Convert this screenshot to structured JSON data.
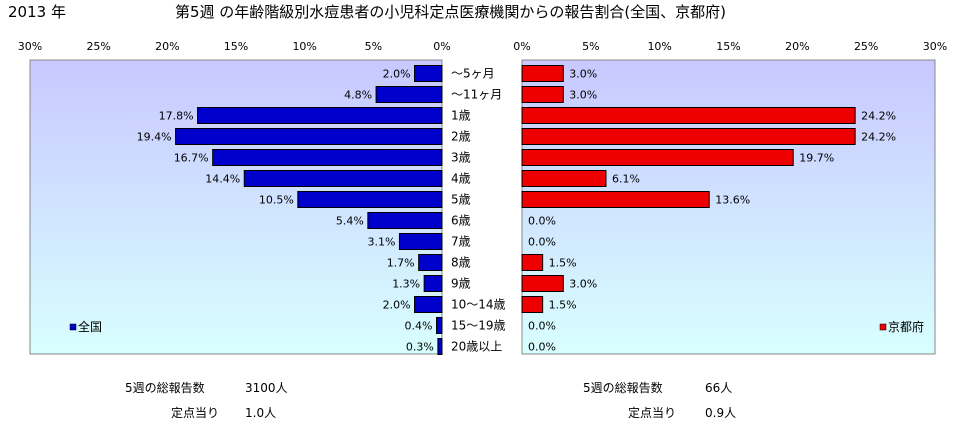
{
  "header": {
    "year": "2013 年",
    "title": "第5週 の年齢階級別水痘患者の小児科定点医療機関からの報告割合(全国、京都府)"
  },
  "colors": {
    "national": "#0000cc",
    "kyoto": "#ee0000",
    "plot_bg_top": "#c8c8ff",
    "plot_bg_bottom": "#d8ffff"
  },
  "chart_data": {
    "type": "bar",
    "categories": [
      "～5ヶ月",
      "～11ヶ月",
      "1歳",
      "2歳",
      "3歳",
      "4歳",
      "5歳",
      "6歳",
      "7歳",
      "8歳",
      "9歳",
      "10～14歳",
      "15～19歳",
      "20歳以上"
    ],
    "xlim": [
      0,
      30
    ],
    "x_tick_labels": [
      "0%",
      "5%",
      "10%",
      "15%",
      "20%",
      "25%",
      "30%"
    ],
    "series": [
      {
        "name": "全国",
        "values": [
          2.0,
          4.8,
          17.8,
          19.4,
          16.7,
          14.4,
          10.5,
          5.4,
          3.1,
          1.7,
          1.3,
          2.0,
          0.4,
          0.3
        ],
        "labels": [
          "2.0%",
          "4.8%",
          "17.8%",
          "19.4%",
          "16.7%",
          "14.4%",
          "10.5%",
          "5.4%",
          "3.1%",
          "1.7%",
          "1.3%",
          "2.0%",
          "0.4%",
          "0.3%"
        ]
      },
      {
        "name": "京都府",
        "values": [
          3.0,
          3.0,
          24.2,
          24.2,
          19.7,
          6.1,
          13.6,
          0.0,
          0.0,
          1.5,
          3.0,
          1.5,
          0.0,
          0.0
        ],
        "labels": [
          "3.0%",
          "3.0%",
          "24.2%",
          "24.2%",
          "19.7%",
          "6.1%",
          "13.6%",
          "0.0%",
          "0.0%",
          "1.5%",
          "3.0%",
          "1.5%",
          "0.0%",
          "0.0%"
        ]
      }
    ]
  },
  "stats": {
    "national": {
      "total_label": "5週の総報告数",
      "total_value": "3100人",
      "per_label": "定点当り",
      "per_value": "1.0人"
    },
    "kyoto": {
      "total_label": "5週の総報告数",
      "total_value": "66人",
      "per_label": "定点当り",
      "per_value": "0.9人"
    }
  }
}
